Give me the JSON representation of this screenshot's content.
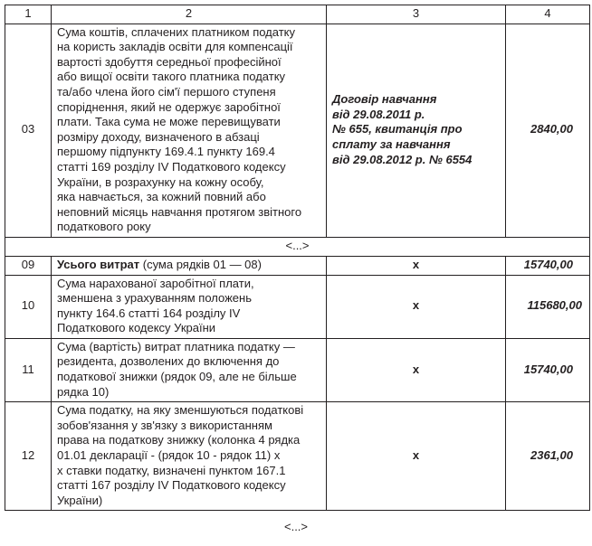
{
  "header": [
    "1",
    "2",
    "3",
    "4"
  ],
  "rows": [
    {
      "code": "03",
      "description": "Сума коштів, сплачених платником податку\nна користь закладів освіти для компенсації\nвартості здобуття середньої професійної\nабо вищої освіти такого платника податку\nта/або члена його сім'ї першого ступеня\nспоріднення, який не одержує заробітної\nплати. Така сума не може перевищувати\nрозміру доходу, визначеного в абзаці\nпершому підпункту 169.4.1 пункту 169.4\nстатті 169 розділу IV Податкового кодексу\nУкраїни, в розрахунку на кожну особу,\nяка навчається, за кожний повний або\nнеповний місяць навчання протягом звітного\nподаткового року",
      "document": "Договір навчання\nвід 29.08.2011 р.\n№ 655, квитанція про\nсплату за навчання\nвід 29.08.2012 р. № 6554",
      "amount": "2840,00"
    }
  ],
  "ellipsis": "<...>",
  "row09": {
    "code": "09",
    "description_bold": "Усього витрат",
    "description_rest": " (сума рядків 01 — 08)",
    "document": "x",
    "amount": "15740,00"
  },
  "row10": {
    "code": "10",
    "description": "Сума нарахованої заробітної плати,\nзменшена з урахуванням положень\nпункту 164.6 статті 164 розділу IV\nПодаткового кодексу України",
    "document": "x",
    "amount": "115680,00"
  },
  "row11": {
    "code": "11",
    "description": "Сума (вартість) витрат платника податку —\nрезидента, дозволених до включення до\nподаткової знижки (рядок 09, але не більше\nрядка 10)",
    "document": "x",
    "amount": "15740,00"
  },
  "row12": {
    "code": "12",
    "description": "Сума податку, на яку зменшуються податкові\nзобов'язання у зв'язку з використанням\nправа на податкову знижку (колонка 4 рядка\n01.01 декларації - (рядок 10 - рядок 11) х\nх ставки податку, визначені пунктом 167.1\nстатті 167 розділу IV Податкового кодексу\nУкраїни)",
    "document": "x",
    "amount": "2361,00"
  },
  "trailing_ellipsis": "<...>"
}
